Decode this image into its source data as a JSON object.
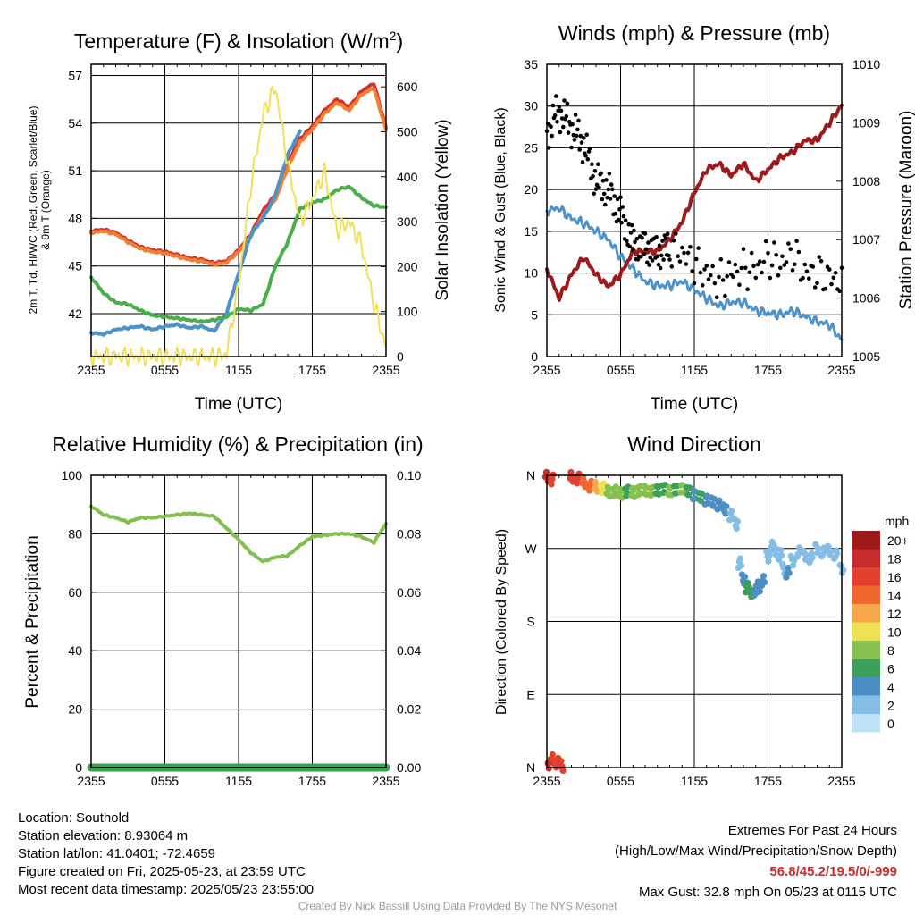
{
  "chart_data": [
    {
      "type": "line",
      "title": "Temperature (F) & Insolation (W/m2)",
      "title_main": "Temperature (F) & Insolation (W/m",
      "title_sup": "2",
      "title_end": ")",
      "xlabel": "Time (UTC)",
      "ylabel_left_line1": "2m T, Td, HI/WC (Red, Green, Scarlet/Blue)",
      "ylabel_left_line2": "& 9m T (Orange)",
      "ylabel_right": "Solar Insolation (Yellow)",
      "x_ticks": [
        "2355",
        "0555",
        "1155",
        "1755",
        "2355"
      ],
      "ylim_left": [
        39.3,
        57.7
      ],
      "y_ticks_left": [
        42,
        45,
        48,
        51,
        54,
        57
      ],
      "ylim_right": [
        0,
        650
      ],
      "y_ticks_right": [
        0,
        100,
        200,
        300,
        400,
        500,
        600
      ],
      "x_hours": [
        0,
        1,
        2,
        3,
        4,
        5,
        6,
        7,
        8,
        9,
        10,
        11,
        12,
        13,
        14,
        15,
        16,
        17,
        18,
        19,
        20,
        21,
        22,
        23,
        24
      ],
      "series": [
        {
          "name": "2m T",
          "color": "#d42d2a",
          "axis": "left",
          "values": [
            47.2,
            47.3,
            47.1,
            46.6,
            46.2,
            46.0,
            45.9,
            45.7,
            45.5,
            45.4,
            45.2,
            45.3,
            46.0,
            47.0,
            48.5,
            49.5,
            51.5,
            53.0,
            53.8,
            54.8,
            55.5,
            55.0,
            56.0,
            56.5,
            53.7
          ]
        },
        {
          "name": "9m T",
          "color": "#f07e34",
          "axis": "left",
          "values": [
            47.1,
            47.2,
            47.0,
            46.5,
            46.1,
            45.9,
            45.8,
            45.6,
            45.4,
            45.3,
            45.1,
            45.2,
            45.9,
            46.9,
            48.2,
            49.2,
            51.2,
            52.8,
            53.6,
            54.6,
            55.3,
            54.8,
            55.8,
            56.2,
            53.6
          ]
        },
        {
          "name": "HI/WC",
          "color": "#4d93c9",
          "axis": "left",
          "values": [
            40.8,
            40.7,
            41.0,
            41.1,
            41.2,
            41.0,
            41.2,
            41.3,
            41.1,
            41.2,
            40.9,
            42.0,
            44.5,
            47.0,
            48.0,
            49.5,
            52.0,
            53.5,
            null,
            null,
            null,
            null,
            null,
            null,
            null
          ]
        },
        {
          "name": "Td",
          "color": "#4aae4a",
          "axis": "left",
          "values": [
            44.3,
            43.3,
            42.7,
            42.6,
            42.2,
            41.9,
            41.8,
            41.7,
            41.6,
            41.5,
            41.6,
            41.8,
            42.3,
            42.2,
            42.6,
            45.0,
            46.5,
            48.6,
            49.0,
            49.2,
            49.8,
            50.0,
            49.3,
            48.8,
            48.7
          ]
        },
        {
          "name": "Solar Insolation",
          "color": "#f2e05a",
          "axis": "right",
          "values": [
            0,
            0,
            0,
            0,
            0,
            0,
            0,
            0,
            0,
            0,
            0,
            5,
            160,
            380,
            540,
            600,
            430,
            300,
            350,
            410,
            280,
            300,
            250,
            120,
            20
          ]
        }
      ]
    },
    {
      "type": "line",
      "title": "Winds (mph) & Pressure (mb)",
      "xlabel": "Time (UTC)",
      "ylabel_left": "Sonic Wind & Gust (Blue, Black)",
      "ylabel_right": "Station Pressure (Maroon)",
      "x_ticks": [
        "2355",
        "0555",
        "1155",
        "1755",
        "2355"
      ],
      "ylim_left": [
        0,
        35
      ],
      "y_ticks_left": [
        0,
        5,
        10,
        15,
        20,
        25,
        30,
        35
      ],
      "ylim_right": [
        1005,
        1010
      ],
      "y_ticks_right": [
        1005,
        1006,
        1007,
        1008,
        1009,
        1010
      ],
      "x_hours": [
        0,
        1,
        2,
        3,
        4,
        5,
        6,
        7,
        8,
        9,
        10,
        11,
        12,
        13,
        14,
        15,
        16,
        17,
        18,
        19,
        20,
        21,
        22,
        23,
        24
      ],
      "series": [
        {
          "name": "Sonic Wind",
          "color": "#4d93c9",
          "axis": "left",
          "values": [
            17.5,
            17.8,
            16.5,
            16.0,
            15.0,
            14.0,
            12.0,
            10.5,
            9.0,
            8.5,
            8.5,
            9.0,
            8.0,
            7.0,
            6.0,
            6.5,
            6.5,
            5.5,
            5.2,
            5.0,
            5.5,
            4.8,
            4.2,
            3.8,
            2.0
          ]
        },
        {
          "name": "Gust",
          "color": "#000000",
          "axis": "left",
          "values": [
            27.0,
            29.5,
            27.5,
            25.5,
            21.0,
            20.0,
            17.0,
            13.5,
            13.0,
            12.5,
            13.0,
            12.5,
            11.0,
            10.0,
            9.0,
            10.0,
            10.5,
            10.5,
            12.0,
            11.0,
            12.5,
            10.0,
            10.0,
            9.5,
            9.0
          ]
        },
        {
          "name": "Station Pressure",
          "color": "#9e1a1a",
          "axis": "right",
          "values": [
            1006.5,
            1006.0,
            1006.4,
            1006.7,
            1006.4,
            1006.2,
            1006.4,
            1006.8,
            1006.8,
            1006.8,
            1007.0,
            1007.3,
            1007.8,
            1008.2,
            1008.3,
            1008.1,
            1008.3,
            1008.0,
            1008.2,
            1008.4,
            1008.5,
            1008.7,
            1008.7,
            1009.0,
            1009.3
          ]
        }
      ]
    },
    {
      "type": "line",
      "title": "Relative Humidity (%) & Precipitation (in)",
      "ylabel_left": "Percent & Precipitation",
      "x_ticks": [
        "2355",
        "0555",
        "1155",
        "1755",
        "2355"
      ],
      "ylim_left": [
        0,
        100
      ],
      "y_ticks_left": [
        0,
        20,
        40,
        60,
        80,
        100
      ],
      "ylim_right": [
        0,
        0.1
      ],
      "y_ticks_right": [
        "0.00",
        "0.02",
        "0.04",
        "0.06",
        "0.08",
        "0.10"
      ],
      "x_hours": [
        0,
        1,
        2,
        3,
        4,
        5,
        6,
        7,
        8,
        9,
        10,
        11,
        12,
        13,
        14,
        15,
        16,
        17,
        18,
        19,
        20,
        21,
        22,
        23,
        24
      ],
      "series": [
        {
          "name": "Relative Humidity",
          "color": "#82c04e",
          "axis": "left",
          "values": [
            89.5,
            86.5,
            85.5,
            84.0,
            85.5,
            85.5,
            86.0,
            86.5,
            87.0,
            86.5,
            86.0,
            82.0,
            78.0,
            73.5,
            70.5,
            72.0,
            72.5,
            76.0,
            79.0,
            79.5,
            80.0,
            80.0,
            79.0,
            77.0,
            83.5
          ]
        },
        {
          "name": "Precipitation",
          "color": "#3aa24a",
          "axis": "right",
          "values": [
            0,
            0,
            0,
            0,
            0,
            0,
            0,
            0,
            0,
            0,
            0,
            0,
            0,
            0,
            0,
            0,
            0,
            0,
            0,
            0,
            0,
            0,
            0,
            0,
            0
          ]
        }
      ]
    },
    {
      "type": "scatter",
      "title": "Wind Direction",
      "ylabel_left": "Direction (Colored By Speed)",
      "x_ticks": [
        "2355",
        "0555",
        "1155",
        "1755",
        "2355"
      ],
      "y_ticks": [
        {
          "label": "N",
          "deg": 0
        },
        {
          "label": "E",
          "deg": 90
        },
        {
          "label": "S",
          "deg": 180
        },
        {
          "label": "W",
          "deg": 270
        },
        {
          "label": "N",
          "deg": 360
        }
      ],
      "ylim": [
        0,
        360
      ],
      "legend_title": "mph",
      "legend_placement": "right",
      "legend_labels": [
        "20+",
        "18",
        "16",
        "14",
        "12",
        "10",
        "8",
        "6",
        "4",
        "2",
        "0"
      ],
      "legend_colors": [
        "#9e1a1a",
        "#c72a2a",
        "#e3402d",
        "#f0662f",
        "#f7a64a",
        "#ede154",
        "#86c04f",
        "#3e9f5a",
        "#4d8fc4",
        "#86bde5",
        "#bfe3f6"
      ],
      "points": [
        {
          "h": 0.0,
          "deg": 358,
          "mph": 18
        },
        {
          "h": 0.2,
          "deg": 5,
          "mph": 18
        },
        {
          "h": 0.5,
          "deg": 10,
          "mph": 16
        },
        {
          "h": 0.8,
          "deg": 6,
          "mph": 17
        },
        {
          "h": 1.2,
          "deg": 2,
          "mph": 16
        },
        {
          "h": 0.4,
          "deg": 355,
          "mph": 17
        },
        {
          "h": 2.0,
          "deg": 358,
          "mph": 17
        },
        {
          "h": 2.5,
          "deg": 356,
          "mph": 16
        },
        {
          "h": 3.0,
          "deg": 352,
          "mph": 15
        },
        {
          "h": 3.5,
          "deg": 347,
          "mph": 14
        },
        {
          "h": 4.0,
          "deg": 346,
          "mph": 13
        },
        {
          "h": 4.5,
          "deg": 344,
          "mph": 11
        },
        {
          "h": 5.0,
          "deg": 340,
          "mph": 9
        },
        {
          "h": 5.5,
          "deg": 340,
          "mph": 8
        },
        {
          "h": 6.0,
          "deg": 338,
          "mph": 8
        },
        {
          "h": 6.5,
          "deg": 340,
          "mph": 7
        },
        {
          "h": 7.0,
          "deg": 339,
          "mph": 8
        },
        {
          "h": 7.5,
          "deg": 341,
          "mph": 9
        },
        {
          "h": 8.0,
          "deg": 342,
          "mph": 8
        },
        {
          "h": 8.5,
          "deg": 340,
          "mph": 8
        },
        {
          "h": 9.0,
          "deg": 342,
          "mph": 7
        },
        {
          "h": 9.5,
          "deg": 343,
          "mph": 7
        },
        {
          "h": 10.0,
          "deg": 341,
          "mph": 8
        },
        {
          "h": 10.5,
          "deg": 342,
          "mph": 7
        },
        {
          "h": 11.0,
          "deg": 344,
          "mph": 8
        },
        {
          "h": 11.5,
          "deg": 340,
          "mph": 6
        },
        {
          "h": 12.0,
          "deg": 336,
          "mph": 5
        },
        {
          "h": 12.5,
          "deg": 333,
          "mph": 6
        },
        {
          "h": 13.0,
          "deg": 330,
          "mph": 5
        },
        {
          "h": 13.5,
          "deg": 327,
          "mph": 4
        },
        {
          "h": 14.0,
          "deg": 324,
          "mph": 5
        },
        {
          "h": 14.5,
          "deg": 318,
          "mph": 4
        },
        {
          "h": 15.0,
          "deg": 311,
          "mph": 3
        },
        {
          "h": 15.4,
          "deg": 300,
          "mph": 3
        },
        {
          "h": 15.7,
          "deg": 252,
          "mph": 3
        },
        {
          "h": 16.0,
          "deg": 232,
          "mph": 4
        },
        {
          "h": 16.3,
          "deg": 222,
          "mph": 6
        },
        {
          "h": 16.6,
          "deg": 216,
          "mph": 6
        },
        {
          "h": 17.0,
          "deg": 218,
          "mph": 5
        },
        {
          "h": 17.3,
          "deg": 223,
          "mph": 5
        },
        {
          "h": 17.6,
          "deg": 230,
          "mph": 4
        },
        {
          "h": 18.0,
          "deg": 260,
          "mph": 3
        },
        {
          "h": 18.3,
          "deg": 272,
          "mph": 2
        },
        {
          "h": 18.6,
          "deg": 268,
          "mph": 3
        },
        {
          "h": 19.0,
          "deg": 262,
          "mph": 3
        },
        {
          "h": 19.3,
          "deg": 245,
          "mph": 3
        },
        {
          "h": 19.6,
          "deg": 240,
          "mph": 4
        },
        {
          "h": 20.0,
          "deg": 255,
          "mph": 3
        },
        {
          "h": 20.5,
          "deg": 265,
          "mph": 3
        },
        {
          "h": 21.0,
          "deg": 262,
          "mph": 2
        },
        {
          "h": 21.5,
          "deg": 258,
          "mph": 3
        },
        {
          "h": 22.0,
          "deg": 270,
          "mph": 2
        },
        {
          "h": 22.5,
          "deg": 265,
          "mph": 3
        },
        {
          "h": 23.0,
          "deg": 268,
          "mph": 2
        },
        {
          "h": 23.5,
          "deg": 262,
          "mph": 3
        },
        {
          "h": 24.0,
          "deg": 245,
          "mph": 3
        }
      ]
    }
  ],
  "footer": {
    "location": "Location: Southold",
    "elevation": "Station elevation: 8.93064 m",
    "latlon": "Station lat/lon: 41.0401; -72.4659",
    "created": "Figure created on Fri, 2025-05-23, at 23:59 UTC",
    "recent": "Most recent data timestamp: 2025/05/23 23:55:00",
    "extremes_title": "Extremes For Past 24 Hours",
    "extremes_desc": "(High/Low/Max Wind/Precipitation/Snow Depth)",
    "extremes_values": "56.8/45.2/19.5/0/-999",
    "max_gust": "Max Gust: 32.8 mph On 05/23 at 0115 UTC",
    "credit": "Created By Nick Bassill Using Data Provided By The NYS Mesonet"
  }
}
